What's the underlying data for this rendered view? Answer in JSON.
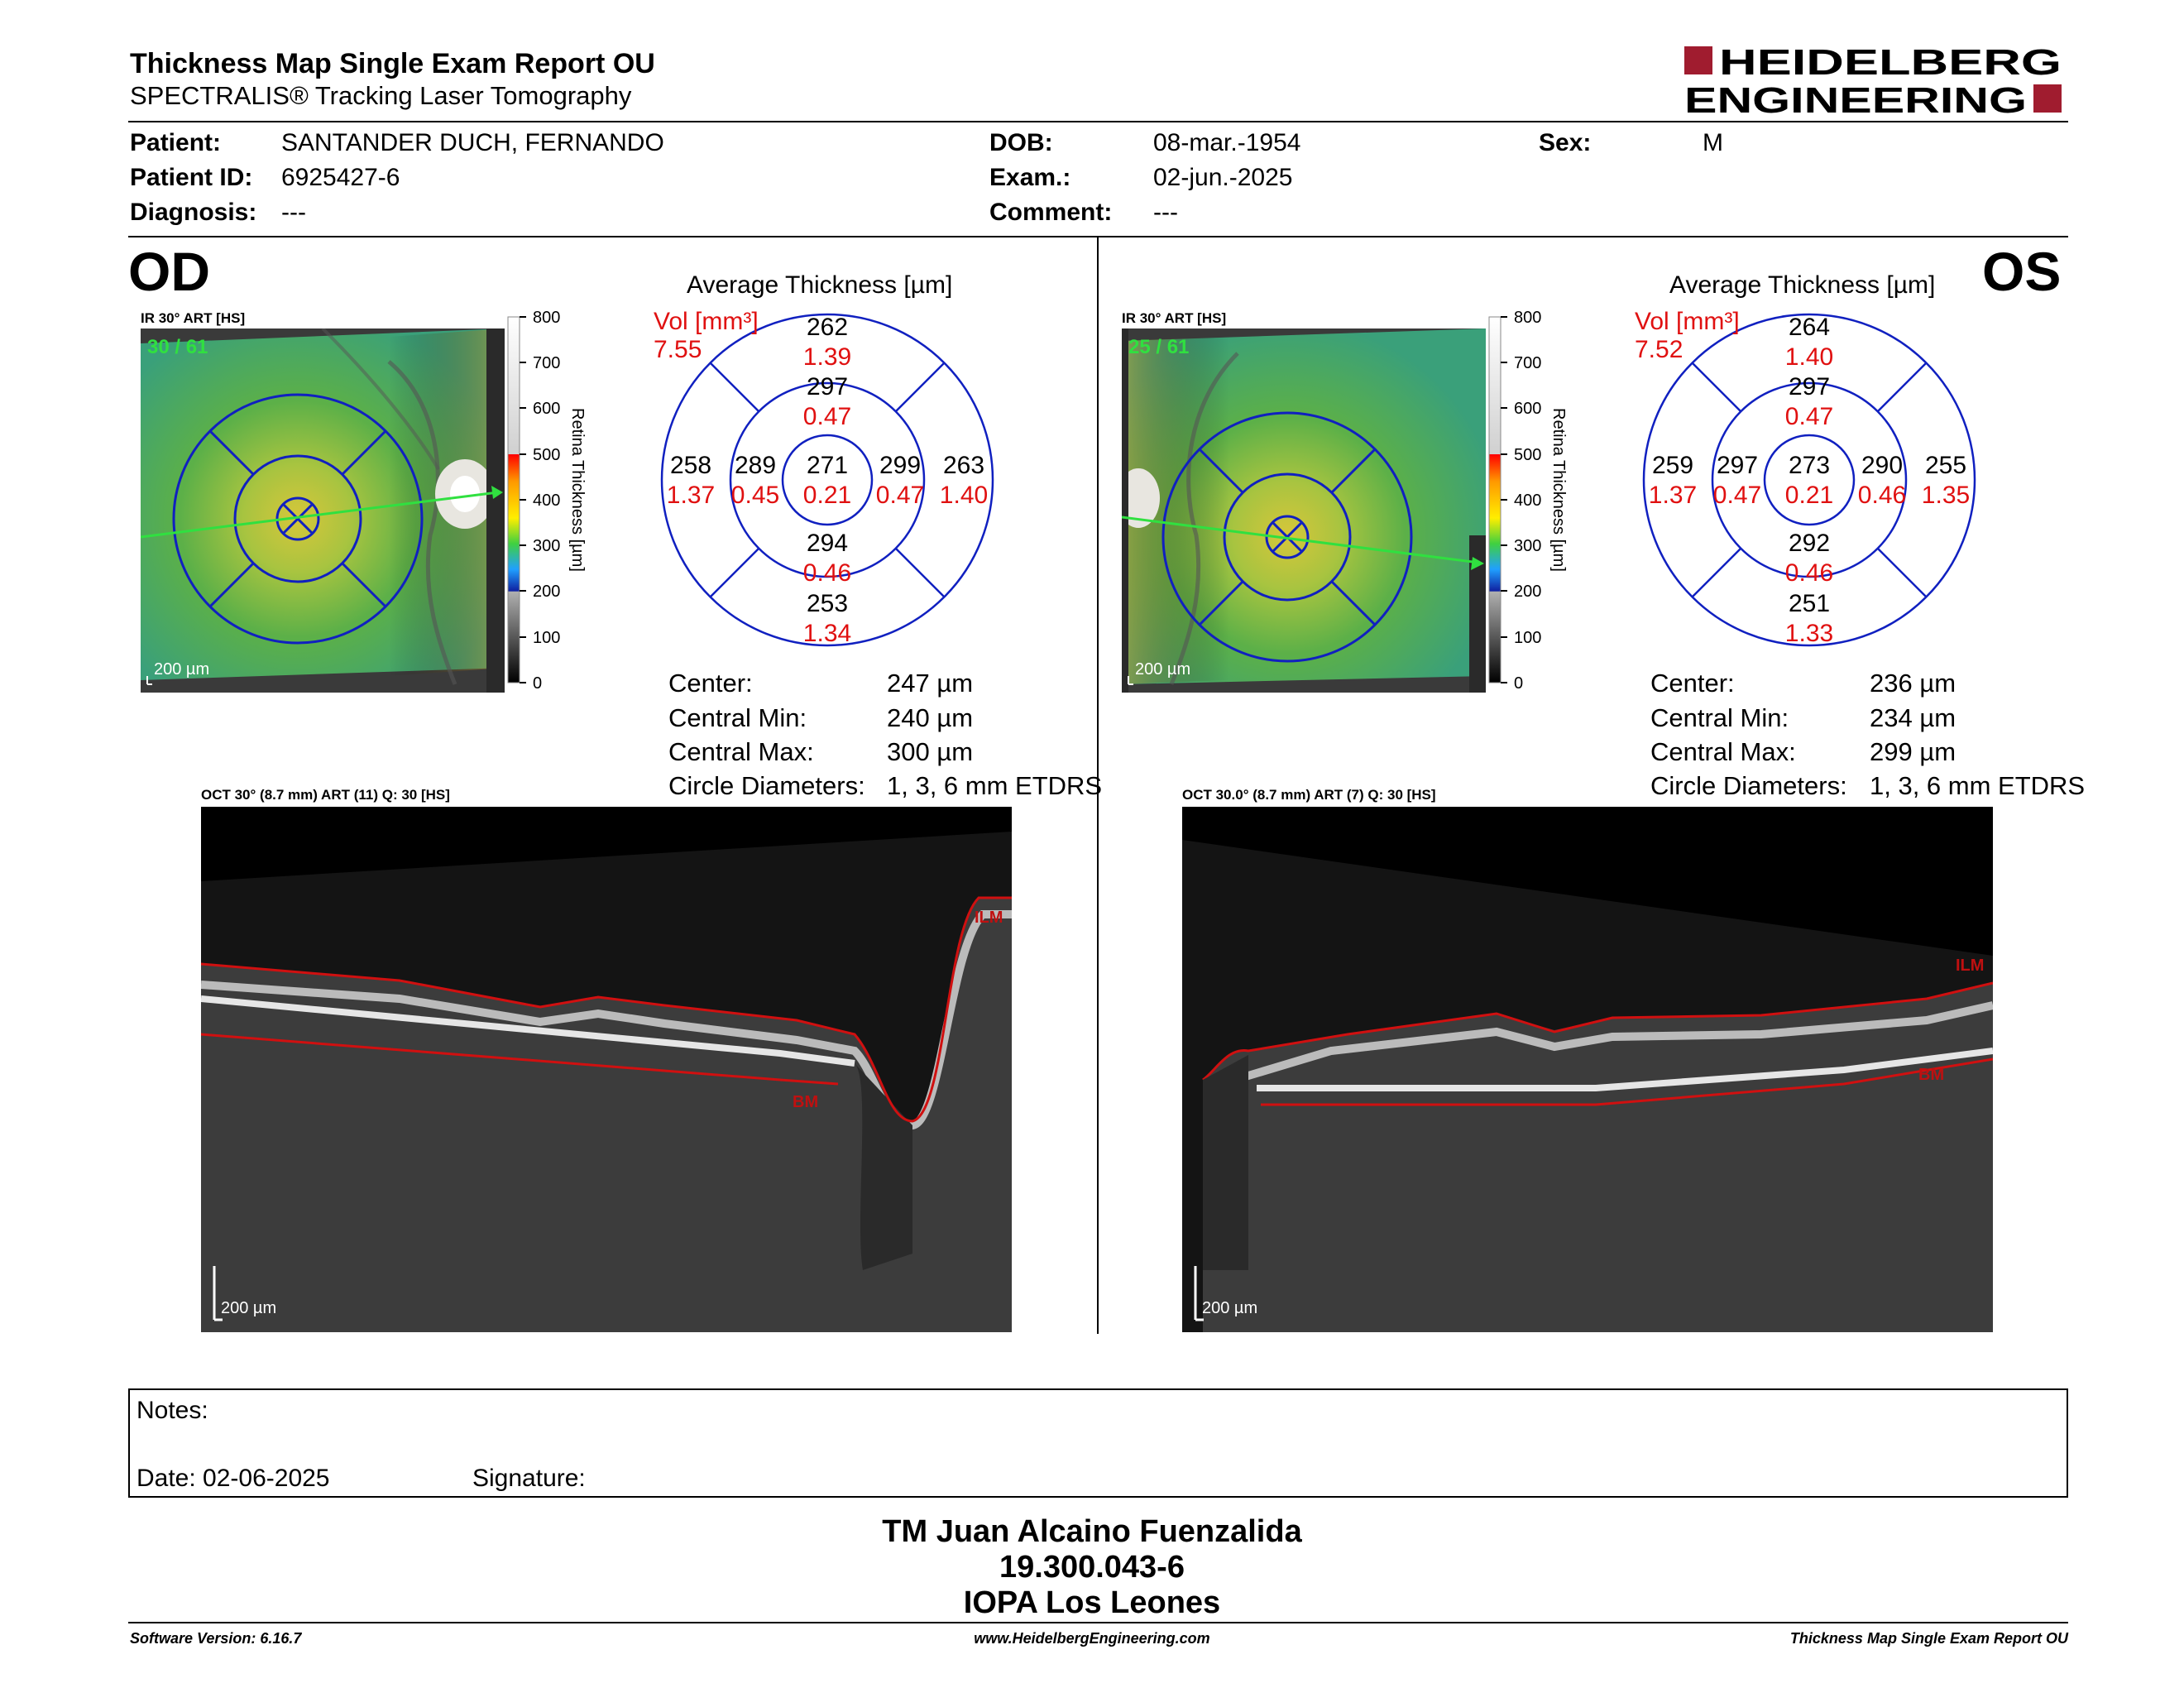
{
  "header": {
    "title": "Thickness Map Single Exam Report OU",
    "subtitle": "SPECTRALIS® Tracking Laser Tomography",
    "logo_line1": "HEIDELBERG",
    "logo_line2": "ENGINEERING"
  },
  "patient": {
    "patient_label": "Patient:",
    "patient_value": "SANTANDER DUCH, FERNANDO",
    "id_label": "Patient ID:",
    "id_value": "6925427-6",
    "diagnosis_label": "Diagnosis:",
    "diagnosis_value": "---",
    "dob_label": "DOB:",
    "dob_value": "08-mar.-1954",
    "exam_label": "Exam.:",
    "exam_value": "02-jun.-2025",
    "comment_label": "Comment:",
    "comment_value": "---",
    "sex_label": "Sex:",
    "sex_value": "M"
  },
  "colors": {
    "accent_red": "#a01c2f",
    "grid_blue": "#1020c0",
    "vol_red": "#e01010",
    "ilm_red": "#d01010"
  },
  "scale": {
    "ticks": [
      "800",
      "700",
      "600",
      "500",
      "400",
      "300",
      "200",
      "100",
      "0"
    ],
    "axis_label": "Retina Thickness [µm]"
  },
  "od": {
    "eye_label": "OD",
    "ir_label": "IR 30° ART [HS]",
    "frame_label": "30 / 61",
    "scale_bar": "200 µm",
    "avg_title": "Average Thickness [µm]",
    "vol_label": "Vol [mm³]",
    "vol_total": "7.55",
    "etdrs": {
      "center_t": "271",
      "center_v": "0.21",
      "inner_sup_t": "297",
      "inner_sup_v": "0.47",
      "inner_inf_t": "294",
      "inner_inf_v": "0.46",
      "inner_left_t": "289",
      "inner_left_v": "0.45",
      "inner_right_t": "299",
      "inner_right_v": "0.47",
      "outer_sup_t": "262",
      "outer_sup_v": "1.39",
      "outer_inf_t": "253",
      "outer_inf_v": "1.34",
      "outer_left_t": "258",
      "outer_left_v": "1.37",
      "outer_right_t": "263",
      "outer_right_v": "1.40"
    },
    "center_label": "Center:",
    "center_value": "247 µm",
    "cmin_label": "Central Min:",
    "cmin_value": "240 µm",
    "cmax_label": "Central Max:",
    "cmax_value": "300 µm",
    "circ_label": "Circle Diameters:",
    "circ_value": "1, 3, 6 mm ETDRS",
    "oct_label": "OCT 30° (8.7 mm) ART (11) Q: 30 [HS]",
    "oct_scale": "200 µm",
    "ilm": "ILM",
    "bm": "BM"
  },
  "os": {
    "eye_label": "OS",
    "ir_label": "IR 30° ART [HS]",
    "frame_label": "25 / 61",
    "scale_bar": "200 µm",
    "avg_title": "Average Thickness [µm]",
    "vol_label": "Vol [mm³]",
    "vol_total": "7.52",
    "etdrs": {
      "center_t": "273",
      "center_v": "0.21",
      "inner_sup_t": "297",
      "inner_sup_v": "0.47",
      "inner_inf_t": "292",
      "inner_inf_v": "0.46",
      "inner_left_t": "297",
      "inner_left_v": "0.47",
      "inner_right_t": "290",
      "inner_right_v": "0.46",
      "outer_sup_t": "264",
      "outer_sup_v": "1.40",
      "outer_inf_t": "251",
      "outer_inf_v": "1.33",
      "outer_left_t": "259",
      "outer_left_v": "1.37",
      "outer_right_t": "255",
      "outer_right_v": "1.35"
    },
    "center_label": "Center:",
    "center_value": "236 µm",
    "cmin_label": "Central Min:",
    "cmin_value": "234 µm",
    "cmax_label": "Central Max:",
    "cmax_value": "299 µm",
    "circ_label": "Circle Diameters:",
    "circ_value": "1, 3, 6 mm ETDRS",
    "oct_label": "OCT 30.0° (8.7 mm) ART (7) Q: 30 [HS]",
    "oct_scale": "200 µm",
    "ilm": "ILM",
    "bm": "BM"
  },
  "notes": {
    "notes_label": "Notes:",
    "date_label": "Date: 02-06-2025",
    "signature_label": "Signature:"
  },
  "signatory": {
    "line1": "TM Juan Alcaino Fuenzalida",
    "line2": "19.300.043-6",
    "line3": "IOPA Los Leones"
  },
  "footer": {
    "software": "Software Version: 6.16.7",
    "website": "www.HeidelbergEngineering.com",
    "report": "Thickness Map Single Exam Report OU"
  }
}
